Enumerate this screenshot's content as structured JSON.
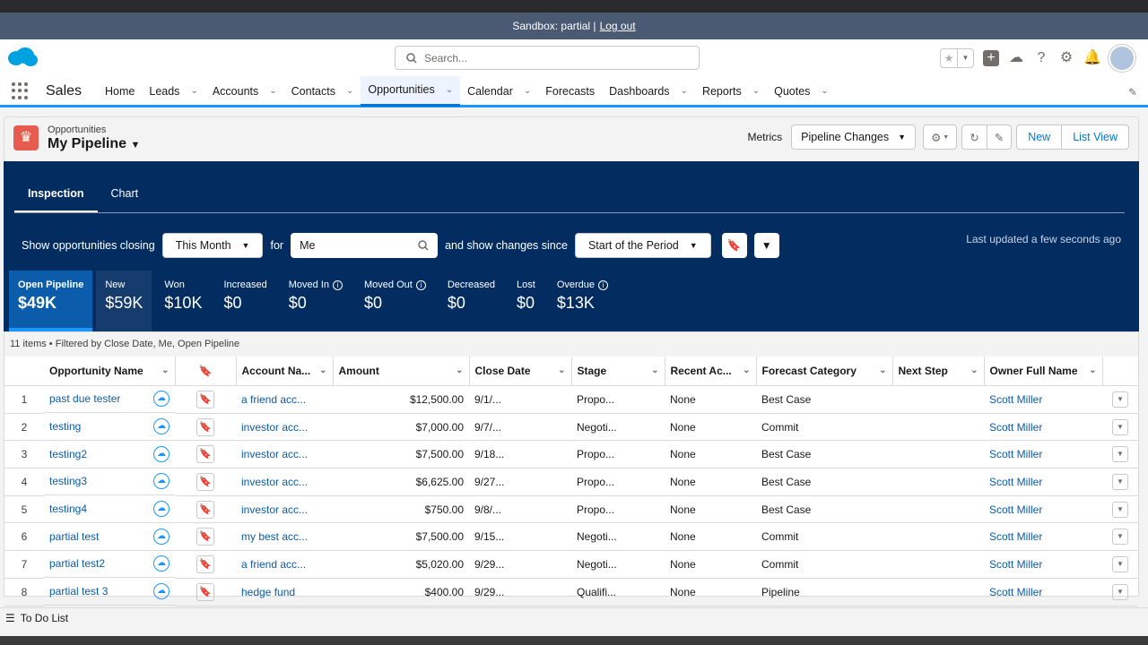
{
  "banner": {
    "sandbox": "Sandbox: partial |",
    "logout": "Log out"
  },
  "search": {
    "placeholder": "Search..."
  },
  "nav": {
    "app_name": "Sales",
    "items": [
      {
        "label": "Home",
        "chevron": false
      },
      {
        "label": "Leads",
        "chevron": true
      },
      {
        "label": "Accounts",
        "chevron": true
      },
      {
        "label": "Contacts",
        "chevron": true
      },
      {
        "label": "Opportunities",
        "chevron": true,
        "active": true
      },
      {
        "label": "Calendar",
        "chevron": true
      },
      {
        "label": "Forecasts",
        "chevron": false
      },
      {
        "label": "Dashboards",
        "chevron": true
      },
      {
        "label": "Reports",
        "chevron": true
      },
      {
        "label": "Quotes",
        "chevron": true
      }
    ]
  },
  "page": {
    "object_label": "Opportunities",
    "title": "My Pipeline",
    "metrics_label": "Metrics",
    "metrics_value": "Pipeline Changes",
    "new_label": "New",
    "list_view_label": "List View"
  },
  "inspection": {
    "tab_inspection": "Inspection",
    "tab_chart": "Chart",
    "show_closing_label": "Show opportunities closing",
    "closing_value": "This Month",
    "for_label": "for",
    "for_value": "Me",
    "changes_since_label": "and show changes since",
    "changes_since_value": "Start of the Period",
    "last_updated": "Last updated a few seconds ago"
  },
  "metric_cards": [
    {
      "label": "Open Pipeline",
      "value": "$49K",
      "info": false
    },
    {
      "label": "New",
      "value": "$59K",
      "info": false
    },
    {
      "label": "Won",
      "value": "$10K",
      "info": false
    },
    {
      "label": "Increased",
      "value": "$0",
      "info": false
    },
    {
      "label": "Moved In",
      "value": "$0",
      "info": true
    },
    {
      "label": "Moved Out",
      "value": "$0",
      "info": true
    },
    {
      "label": "Decreased",
      "value": "$0",
      "info": false
    },
    {
      "label": "Lost",
      "value": "$0",
      "info": false
    },
    {
      "label": "Overdue",
      "value": "$13K",
      "info": true
    }
  ],
  "table": {
    "count_line": "11 items • Filtered by Close Date, Me, Open Pipeline",
    "columns": [
      "Opportunity Name",
      "Account Na...",
      "Amount",
      "Close Date",
      "Stage",
      "Recent Ac...",
      "Forecast Category",
      "Next Step",
      "Owner Full Name"
    ],
    "rows": [
      {
        "idx": "1",
        "name": "past due tester",
        "account": "a friend acc...",
        "amount": "$12,500.00",
        "close": "9/1/...",
        "stage": "Propo...",
        "recent": "None",
        "forecast": "Best Case",
        "next": "",
        "owner": "Scott Miller"
      },
      {
        "idx": "2",
        "name": "testing",
        "account": "investor acc...",
        "amount": "$7,000.00",
        "close": "9/7/...",
        "stage": "Negoti...",
        "recent": "None",
        "forecast": "Commit",
        "next": "",
        "owner": "Scott Miller"
      },
      {
        "idx": "3",
        "name": "testing2",
        "account": "investor acc...",
        "amount": "$7,500.00",
        "close": "9/18...",
        "stage": "Propo...",
        "recent": "None",
        "forecast": "Best Case",
        "next": "",
        "owner": "Scott Miller"
      },
      {
        "idx": "4",
        "name": "testing3",
        "account": "investor acc...",
        "amount": "$6,625.00",
        "close": "9/27...",
        "stage": "Propo...",
        "recent": "None",
        "forecast": "Best Case",
        "next": "",
        "owner": "Scott Miller"
      },
      {
        "idx": "5",
        "name": "testing4",
        "account": "investor acc...",
        "amount": "$750.00",
        "close": "9/8/...",
        "stage": "Propo...",
        "recent": "None",
        "forecast": "Best Case",
        "next": "",
        "owner": "Scott Miller"
      },
      {
        "idx": "6",
        "name": "partial test",
        "account": "my best acc...",
        "amount": "$7,500.00",
        "close": "9/15...",
        "stage": "Negoti...",
        "recent": "None",
        "forecast": "Commit",
        "next": "",
        "owner": "Scott Miller"
      },
      {
        "idx": "7",
        "name": "partial test2",
        "account": "a friend acc...",
        "amount": "$5,020.00",
        "close": "9/29...",
        "stage": "Negoti...",
        "recent": "None",
        "forecast": "Commit",
        "next": "",
        "owner": "Scott Miller"
      },
      {
        "idx": "8",
        "name": "partial test 3",
        "account": "hedge fund",
        "amount": "$400.00",
        "close": "9/29...",
        "stage": "Qualifi...",
        "recent": "None",
        "forecast": "Pipeline",
        "next": "",
        "owner": "Scott Miller"
      }
    ]
  },
  "footer": {
    "todo": "To Do List"
  },
  "colors": {
    "brand": "#0176d3",
    "dark_panel": "#032d60",
    "active_card": "#0b5cab"
  }
}
